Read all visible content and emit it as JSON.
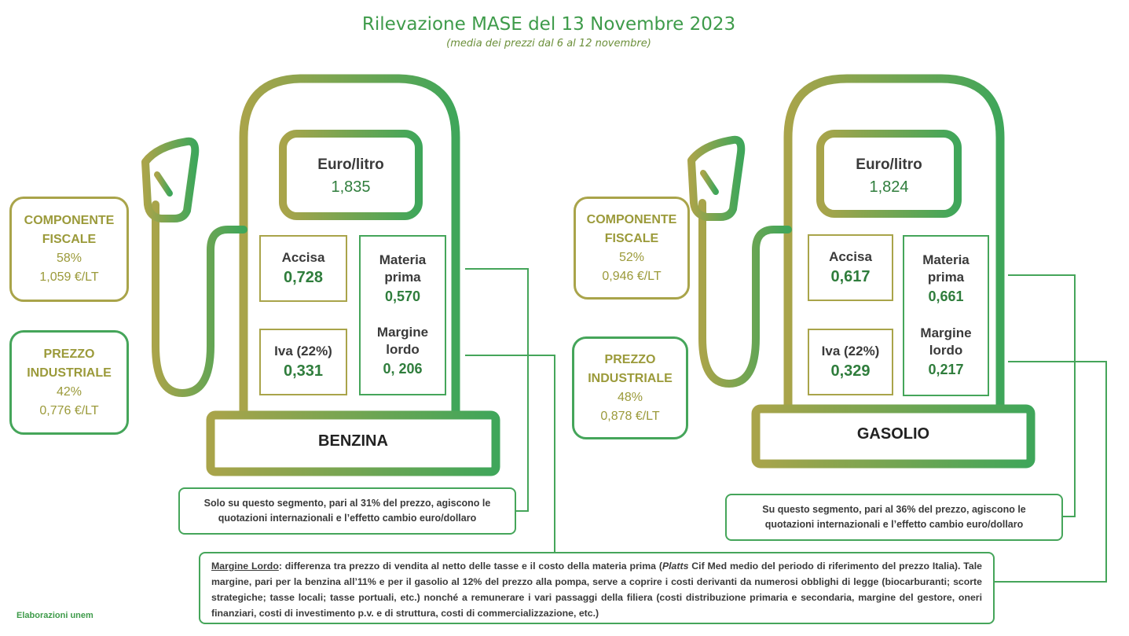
{
  "title": "Rilevazione MASE del 13 Novembre 2023",
  "subtitle": "(media dei prezzi dal 6 al 12 novembre)",
  "colors": {
    "green": "#45a55a",
    "olive": "#a9a44a",
    "text_green": "#2f7d3c"
  },
  "benzina": {
    "name": "BENZINA",
    "euro_label": "Euro/litro",
    "euro_value": "1,835",
    "fiscale": {
      "line1": "COMPONENTE",
      "line2": "FISCALE",
      "pct": "58%",
      "value": "1,059 €/LT"
    },
    "industriale": {
      "line1": "PREZZO",
      "line2": "INDUSTRIALE",
      "pct": "42%",
      "value": "0,776 €/LT"
    },
    "accisa_label": "Accisa",
    "accisa_value": "0,728",
    "iva_label": "Iva (22%)",
    "iva_value": "0,331",
    "materia_line1": "Materia",
    "materia_line2": "prima",
    "materia_value": "0,570",
    "margine_line1": "Margine",
    "margine_line2": "lordo",
    "margine_value": "0, 206",
    "note_line1": "Solo su questo segmento, pari al 31% del prezzo, agiscono le",
    "note_line2": "quotazioni internazionali e l’effetto cambio euro/dollaro"
  },
  "gasolio": {
    "name": "GASOLIO",
    "euro_label": "Euro/litro",
    "euro_value": "1,824",
    "fiscale": {
      "line1": "COMPONENTE",
      "line2": "FISCALE",
      "pct": "52%",
      "value": "0,946 €/LT"
    },
    "industriale": {
      "line1": "PREZZO",
      "line2": "INDUSTRIALE",
      "pct": "48%",
      "value": "0,878 €/LT"
    },
    "accisa_label": "Accisa",
    "accisa_value": "0,617",
    "iva_label": "Iva (22%)",
    "iva_value": "0,329",
    "materia_line1": "Materia",
    "materia_line2": "prima",
    "materia_value": "0,661",
    "margine_line1": "Margine",
    "margine_line2": "lordo",
    "margine_value": "0,217",
    "note_line1": "Su questo segmento, pari al 36% del prezzo, agiscono le",
    "note_line2": "quotazioni internazionali e l’effetto cambio euro/dollaro"
  },
  "margin_note": {
    "term": "Margine Lordo",
    "text_a": ": differenza tra prezzo di vendita al netto delle tasse e il costo della materia prima (",
    "platts": "Platts",
    "text_b": " Cif Med medio del periodo di riferimento del prezzo Italia). Tale margine, pari per la benzina all’11% e per il gasolio al 12% del prezzo alla pompa, serve a coprire i costi derivanti da numerosi obblighi di legge (biocarburanti; scorte strategiche; tasse locali; tasse portuali, etc.) nonché a remunerare i vari passaggi della filiera (costi distribuzione primaria e secondaria, margine del gestore, oneri finanziari, costi di investimento p.v. e di struttura, costi di commercializzazione, etc.)"
  },
  "footer": "Elaborazioni unem"
}
